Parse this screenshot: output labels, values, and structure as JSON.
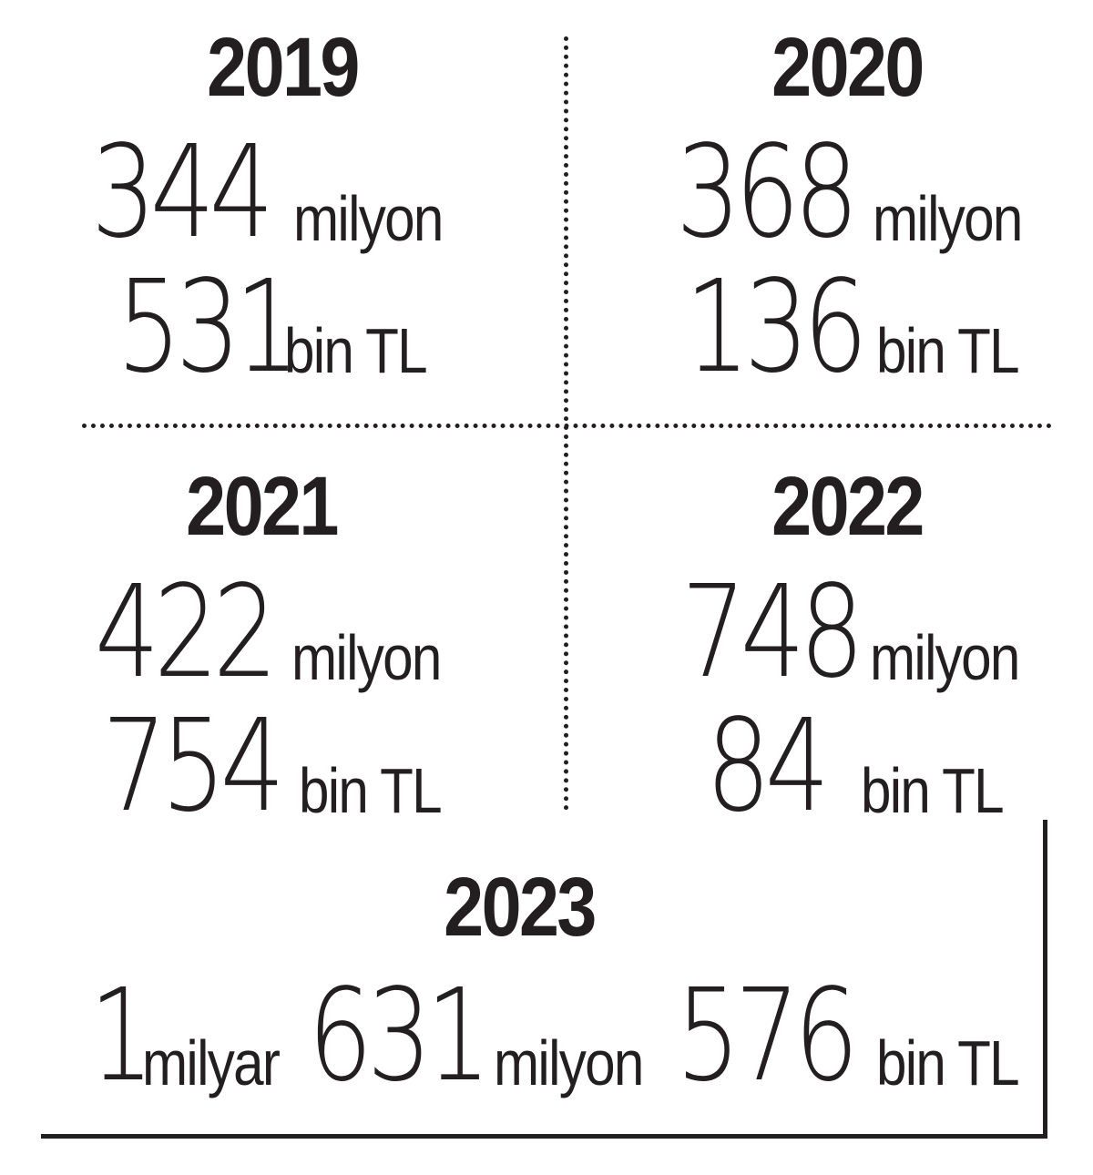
{
  "cells": [
    {
      "year": "2019",
      "line1_num": "344",
      "line1_unit": "milyon",
      "line2_num": "531",
      "line2_unit": "bin TL"
    },
    {
      "year": "2020",
      "line1_num": "368",
      "line1_unit": "milyon",
      "line2_num": "136",
      "line2_unit": "bin TL"
    },
    {
      "year": "2021",
      "line1_num": "422",
      "line1_unit": "milyon",
      "line2_num": "754",
      "line2_unit": "bin TL"
    },
    {
      "year": "2022",
      "line1_num": "748",
      "line1_unit": "milyon",
      "line2_num": "84",
      "line2_unit": "bin TL"
    }
  ],
  "total": {
    "year": "2023",
    "p1_num": "1",
    "p1_unit": "milyar",
    "p2_num": "631",
    "p2_unit": "milyon",
    "p3_num": "576",
    "p3_unit": "bin TL"
  }
}
